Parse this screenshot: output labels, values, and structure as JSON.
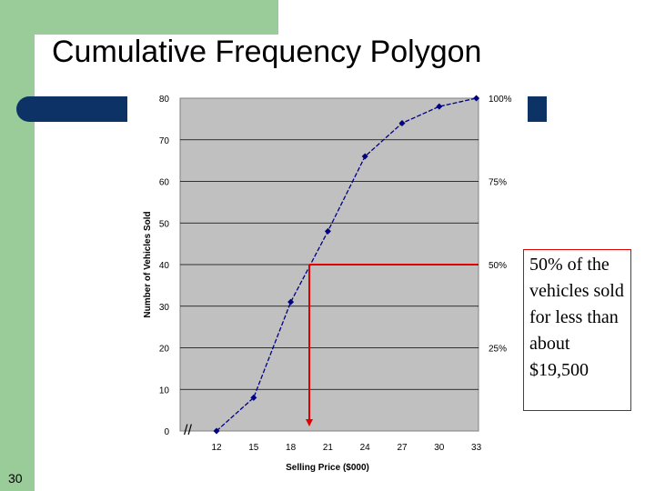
{
  "slide": {
    "title": "Cumulative Frequency Polygon",
    "page_number": "30",
    "annotation": "50% of the vehicles sold for less than about $19,500"
  },
  "colors": {
    "green": "#99cc99",
    "navy": "#0d3366",
    "plot_bg": "#c0c0c0",
    "line": "#000080",
    "marker": "#000080",
    "reference": "#e00000"
  },
  "chart_data": {
    "type": "line",
    "title": "",
    "xlabel": "Selling Price ($000)",
    "ylabel": "Number of Vehicles Sold",
    "x": [
      12,
      15,
      18,
      21,
      24,
      27,
      30,
      33
    ],
    "series": [
      {
        "values": [
          0,
          8,
          31,
          48,
          66,
          74,
          78,
          80
        ]
      }
    ],
    "xticks": [
      "12",
      "15",
      "18",
      "21",
      "24",
      "27",
      "30",
      "33"
    ],
    "yticks": [
      "0",
      "10",
      "20",
      "30",
      "40",
      "50",
      "60",
      "70",
      "80"
    ],
    "ylim": [
      0,
      80
    ],
    "y2ticks": [
      {
        "value": 20,
        "label": "25%"
      },
      {
        "value": 40,
        "label": "50%"
      },
      {
        "value": 60,
        "label": "75%"
      },
      {
        "value": 80,
        "label": "100%"
      }
    ],
    "reference": {
      "x": 19.5,
      "y": 40
    },
    "axis_break": "//",
    "grid": true
  }
}
